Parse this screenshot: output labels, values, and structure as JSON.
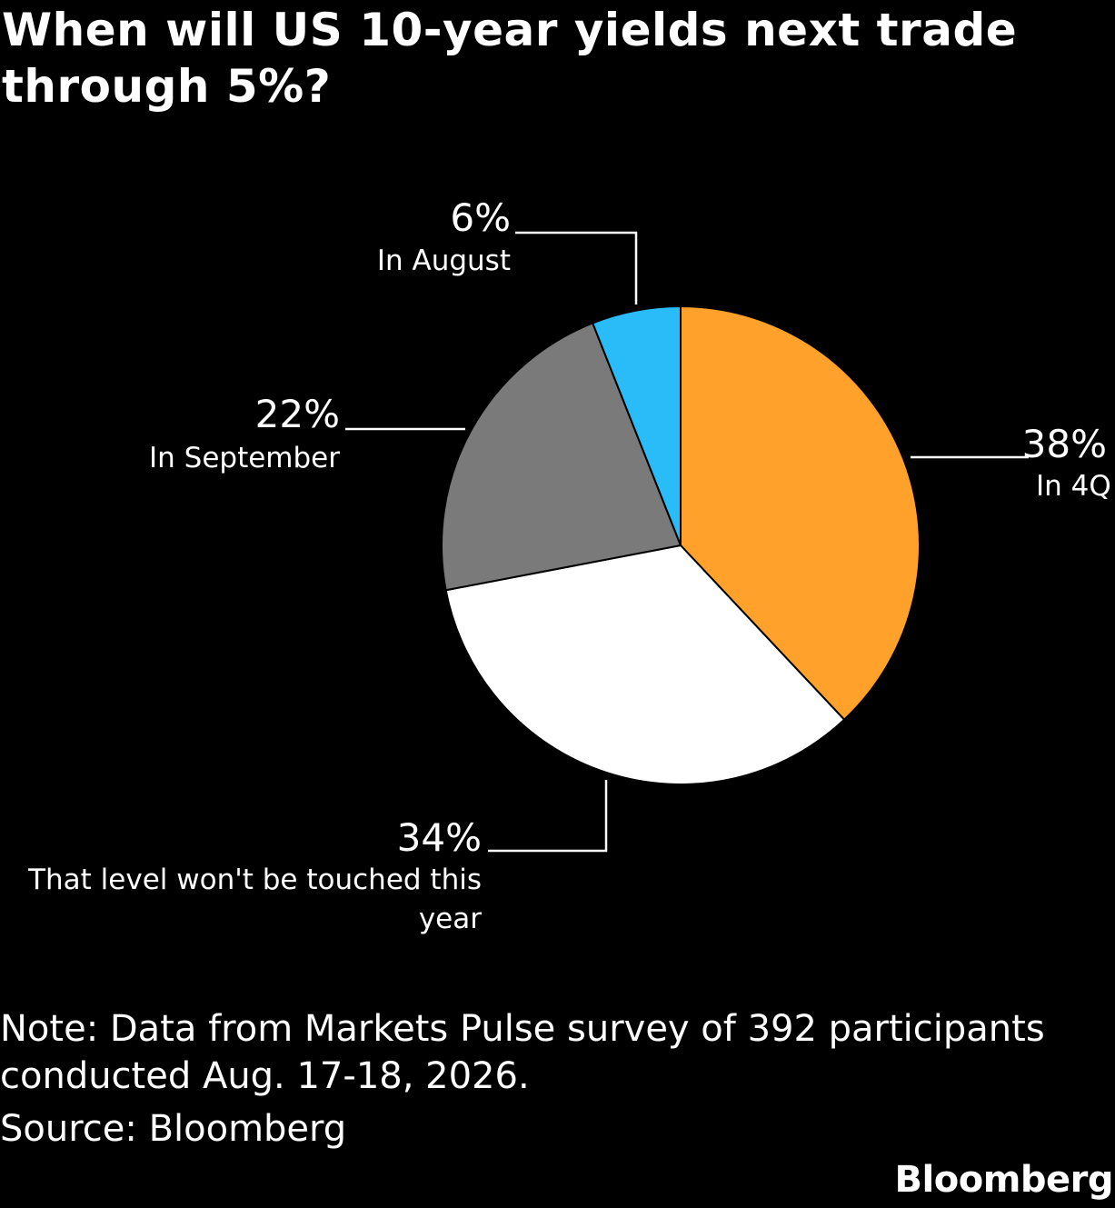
{
  "chart_data": {
    "type": "pie",
    "title": "When will US 10-year yields next trade through 5%?",
    "slices": [
      {
        "label_lines": [
          "In 4Q"
        ],
        "value": 38,
        "value_label": "38%",
        "color": "#ffa12b"
      },
      {
        "label_lines": [
          "That level won't be touched this",
          "year"
        ],
        "value": 34,
        "value_label": "34%",
        "color": "#ffffff"
      },
      {
        "label_lines": [
          "In September"
        ],
        "value": 22,
        "value_label": "22%",
        "color": "#7a7a7a"
      },
      {
        "label_lines": [
          "In August"
        ],
        "value": 6,
        "value_label": "6%",
        "color": "#29bcf8"
      }
    ],
    "note": "Note: Data from Markets Pulse survey of 392 participants conducted Aug. 17-18, 2026.",
    "source": "Source: Bloomberg"
  },
  "brand": {
    "logo_text": "Bloomberg"
  }
}
